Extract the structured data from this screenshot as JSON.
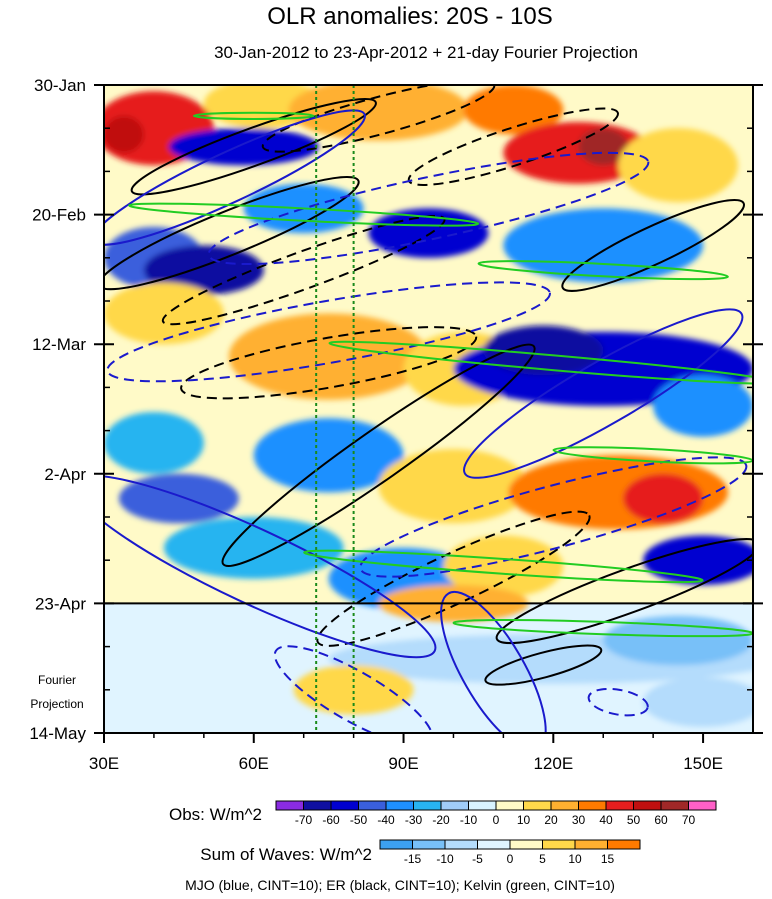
{
  "chart_data": {
    "type": "heatmap",
    "title": "OLR anomalies: 20S - 10S",
    "subtitle": "30-Jan-2012 to 23-Apr-2012 + 21-day Fourier Projection",
    "x_axis": {
      "range": [
        30,
        160
      ],
      "ticks": [
        30,
        60,
        90,
        120,
        150
      ],
      "tick_labels": [
        "30E",
        "60E",
        "90E",
        "120E",
        "150E"
      ]
    },
    "y_axis": {
      "range_days": [
        0,
        105
      ],
      "ticks_days": [
        0,
        21,
        42,
        63,
        84,
        105
      ],
      "tick_labels": [
        "30-Jan",
        "20-Feb",
        "12-Mar",
        "2-Apr",
        "23-Apr",
        "14-May"
      ]
    },
    "projection_start_day": 84,
    "projection_label": [
      "Fourier",
      "Projection"
    ],
    "reference_longitudes": [
      72.5,
      80
    ],
    "obs_colorbar": {
      "label": "Obs: W/m^2",
      "levels": [
        -70,
        -60,
        -50,
        -40,
        -30,
        -20,
        -10,
        0,
        10,
        20,
        30,
        40,
        50,
        60,
        70
      ],
      "colors": [
        "#8a2be2",
        "#1010a0",
        "#0000d0",
        "#3a5fdc",
        "#1e90ff",
        "#28b4f0",
        "#a0ccf8",
        "#d8f2ff",
        "#fffac8",
        "#ffd84a",
        "#ffb030",
        "#ff7a00",
        "#e61e1e",
        "#c01010",
        "#a02828",
        "#ff60c8"
      ]
    },
    "waves_colorbar": {
      "label": "Sum of Waves: W/m^2",
      "levels": [
        -15,
        -10,
        -5,
        0,
        5,
        10,
        15
      ],
      "colors": [
        "#3ca0f0",
        "#78c0f8",
        "#b4dcfc",
        "#e0f4ff",
        "#fffac8",
        "#ffd84a",
        "#ffb030",
        "#ff7a00"
      ]
    },
    "legend": "MJO (blue, CINT=10); ER (black, CINT=10); Kelvin (green, CINT=10)",
    "series": [
      {
        "name": "MJO",
        "color": "#1a1acc",
        "cint": 10
      },
      {
        "name": "ER",
        "color": "#000000",
        "cint": 10
      },
      {
        "name": "Kelvin",
        "color": "#22cc22",
        "cint": 10
      }
    ],
    "anomalies": [
      {
        "lon": 40,
        "day": 7,
        "rx": 12,
        "ry": 6,
        "v": 45
      },
      {
        "lon": 34,
        "day": 8,
        "rx": 4,
        "ry": 3,
        "v": 60
      },
      {
        "lon": 62,
        "day": 3,
        "rx": 12,
        "ry": 4,
        "v": 20
      },
      {
        "lon": 85,
        "day": 4,
        "rx": 18,
        "ry": 5,
        "v": 30
      },
      {
        "lon": 112,
        "day": 4,
        "rx": 10,
        "ry": 4,
        "v": 40
      },
      {
        "lon": 125,
        "day": 11,
        "rx": 15,
        "ry": 5,
        "v": 45
      },
      {
        "lon": 130,
        "day": 10,
        "rx": 5,
        "ry": 3,
        "v": 70
      },
      {
        "lon": 145,
        "day": 13,
        "rx": 12,
        "ry": 6,
        "v": 20
      },
      {
        "lon": 58,
        "day": 10,
        "rx": 15,
        "ry": 3,
        "v": -50
      },
      {
        "lon": 40,
        "day": 28,
        "rx": 10,
        "ry": 5,
        "v": -40
      },
      {
        "lon": 50,
        "day": 30,
        "rx": 12,
        "ry": 4,
        "v": -60
      },
      {
        "lon": 70,
        "day": 20,
        "rx": 12,
        "ry": 4,
        "v": -30
      },
      {
        "lon": 95,
        "day": 24,
        "rx": 12,
        "ry": 4,
        "v": -50
      },
      {
        "lon": 130,
        "day": 26,
        "rx": 20,
        "ry": 6,
        "v": -30
      },
      {
        "lon": 42,
        "day": 37,
        "rx": 12,
        "ry": 5,
        "v": 20
      },
      {
        "lon": 75,
        "day": 44,
        "rx": 20,
        "ry": 7,
        "v": 30
      },
      {
        "lon": 102,
        "day": 46,
        "rx": 12,
        "ry": 6,
        "v": 20
      },
      {
        "lon": 130,
        "day": 46,
        "rx": 30,
        "ry": 6,
        "v": -50
      },
      {
        "lon": 118,
        "day": 43,
        "rx": 12,
        "ry": 4,
        "v": -60
      },
      {
        "lon": 150,
        "day": 52,
        "rx": 10,
        "ry": 5,
        "v": -30
      },
      {
        "lon": 40,
        "day": 58,
        "rx": 10,
        "ry": 5,
        "v": -20
      },
      {
        "lon": 75,
        "day": 60,
        "rx": 15,
        "ry": 6,
        "v": -30
      },
      {
        "lon": 100,
        "day": 65,
        "rx": 15,
        "ry": 6,
        "v": 20
      },
      {
        "lon": 133,
        "day": 66,
        "rx": 22,
        "ry": 6,
        "v": 40
      },
      {
        "lon": 142,
        "day": 67,
        "rx": 8,
        "ry": 4,
        "v": 50
      },
      {
        "lon": 45,
        "day": 67,
        "rx": 12,
        "ry": 4,
        "v": -40
      },
      {
        "lon": 60,
        "day": 75,
        "rx": 18,
        "ry": 5,
        "v": -20
      },
      {
        "lon": 90,
        "day": 80,
        "rx": 15,
        "ry": 5,
        "v": -30
      },
      {
        "lon": 110,
        "day": 78,
        "rx": 12,
        "ry": 5,
        "v": 20
      },
      {
        "lon": 150,
        "day": 77,
        "rx": 12,
        "ry": 4,
        "v": -50
      },
      {
        "lon": 100,
        "day": 84,
        "rx": 15,
        "ry": 3,
        "v": 30
      }
    ],
    "wave_anomalies": [
      {
        "lon": 120,
        "day": 93,
        "rx": 45,
        "ry": 4,
        "v": -7
      },
      {
        "lon": 145,
        "day": 90,
        "rx": 15,
        "ry": 4,
        "v": -10
      },
      {
        "lon": 80,
        "day": 98,
        "rx": 12,
        "ry": 4,
        "v": 7
      },
      {
        "lon": 150,
        "day": 100,
        "rx": 12,
        "ry": 4,
        "v": -5
      }
    ],
    "contours": [
      {
        "series": "ER",
        "lon": 60,
        "day": 10,
        "rx": 26,
        "ry": 3,
        "rot": -20,
        "dash": false
      },
      {
        "series": "ER",
        "lon": 85,
        "day": 5,
        "rx": 24,
        "ry": 3,
        "rot": -15,
        "dash": true
      },
      {
        "series": "ER",
        "lon": 55,
        "day": 24,
        "rx": 28,
        "ry": 3.5,
        "rot": -22,
        "dash": false
      },
      {
        "series": "ER",
        "lon": 70,
        "day": 30,
        "rx": 30,
        "ry": 3,
        "rot": -20,
        "dash": true
      },
      {
        "series": "ER",
        "lon": 112,
        "day": 10,
        "rx": 22,
        "ry": 3,
        "rot": -18,
        "dash": true
      },
      {
        "series": "ER",
        "lon": 140,
        "day": 26,
        "rx": 20,
        "ry": 3,
        "rot": -25,
        "dash": false
      },
      {
        "series": "ER",
        "lon": 85,
        "day": 60,
        "rx": 38,
        "ry": 4,
        "rot": -35,
        "dash": false
      },
      {
        "series": "ER",
        "lon": 75,
        "day": 45,
        "rx": 30,
        "ry": 4,
        "rot": -10,
        "dash": true
      },
      {
        "series": "ER",
        "lon": 100,
        "day": 80,
        "rx": 30,
        "ry": 4,
        "rot": -25,
        "dash": true
      },
      {
        "series": "ER",
        "lon": 135,
        "day": 82,
        "rx": 28,
        "ry": 3.5,
        "rot": -20,
        "dash": false
      },
      {
        "series": "ER",
        "lon": 118,
        "day": 94,
        "rx": 12,
        "ry": 2,
        "rot": -15,
        "dash": false
      },
      {
        "series": "MJO",
        "lon": 55,
        "day": 15,
        "rx": 30,
        "ry": 4,
        "rot": -25,
        "dash": false
      },
      {
        "series": "MJO",
        "lon": 95,
        "day": 20,
        "rx": 45,
        "ry": 5,
        "rot": -12,
        "dash": true
      },
      {
        "series": "MJO",
        "lon": 75,
        "day": 40,
        "rx": 45,
        "ry": 5,
        "rot": -10,
        "dash": true
      },
      {
        "series": "MJO",
        "lon": 130,
        "day": 50,
        "rx": 32,
        "ry": 5,
        "rot": -30,
        "dash": false
      },
      {
        "series": "MJO",
        "lon": 60,
        "day": 78,
        "rx": 40,
        "ry": 6,
        "rot": 25,
        "dash": false
      },
      {
        "series": "MJO",
        "lon": 120,
        "day": 70,
        "rx": 40,
        "ry": 5,
        "rot": -15,
        "dash": true
      },
      {
        "series": "MJO",
        "lon": 80,
        "day": 99,
        "rx": 18,
        "ry": 4,
        "rot": 30,
        "dash": true
      },
      {
        "series": "MJO",
        "lon": 108,
        "day": 95,
        "rx": 18,
        "ry": 5,
        "rot": 60,
        "dash": false
      },
      {
        "series": "MJO",
        "lon": 133,
        "day": 100,
        "rx": 6,
        "ry": 2,
        "rot": 10,
        "dash": true
      },
      {
        "series": "Kelvin",
        "lon": 60,
        "day": 5,
        "rx": 12,
        "ry": 0.5,
        "rot": 0,
        "dash": false
      },
      {
        "series": "Kelvin",
        "lon": 70,
        "day": 21,
        "rx": 35,
        "ry": 1,
        "rot": 3,
        "dash": false
      },
      {
        "series": "Kelvin",
        "lon": 130,
        "day": 30,
        "rx": 25,
        "ry": 1,
        "rot": 3,
        "dash": false
      },
      {
        "series": "Kelvin",
        "lon": 120,
        "day": 45,
        "rx": 45,
        "ry": 1.2,
        "rot": 5,
        "dash": false
      },
      {
        "series": "Kelvin",
        "lon": 140,
        "day": 60,
        "rx": 20,
        "ry": 1,
        "rot": 3,
        "dash": false
      },
      {
        "series": "Kelvin",
        "lon": 110,
        "day": 78,
        "rx": 40,
        "ry": 1.2,
        "rot": 4,
        "dash": false
      },
      {
        "series": "Kelvin",
        "lon": 130,
        "day": 88,
        "rx": 30,
        "ry": 1,
        "rot": 2,
        "dash": false
      }
    ]
  }
}
